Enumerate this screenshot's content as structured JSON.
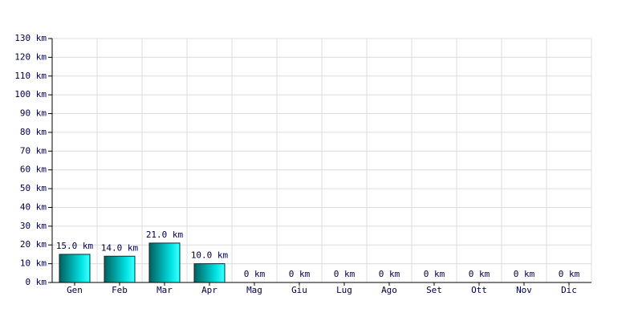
{
  "chart_data": {
    "type": "bar",
    "categories": [
      "Gen",
      "Feb",
      "Mar",
      "Apr",
      "Mag",
      "Giu",
      "Lug",
      "Ago",
      "Set",
      "Ott",
      "Nov",
      "Dic"
    ],
    "values": [
      15,
      14,
      21,
      10,
      0,
      0,
      0,
      0,
      0,
      0,
      0,
      0
    ],
    "value_labels": [
      "15.0 km",
      "14.0 km",
      "21.0 km",
      "10.0 km",
      "0 km",
      "0 km",
      "0 km",
      "0 km",
      "0 km",
      "0 km",
      "0 km",
      "0 km"
    ],
    "color": "#00e0e0",
    "ylim": [
      0,
      130
    ],
    "yticks": [
      {
        "value": 0,
        "label": "0 km"
      },
      {
        "value": 10,
        "label": "10 km"
      },
      {
        "value": 20,
        "label": "20 km"
      },
      {
        "value": 30,
        "label": "30 km"
      },
      {
        "value": 40,
        "label": "40 km"
      },
      {
        "value": 50,
        "label": "50 km"
      },
      {
        "value": 60,
        "label": "60 km"
      },
      {
        "value": 70,
        "label": "70 km"
      },
      {
        "value": 80,
        "label": "80 km"
      },
      {
        "value": 90,
        "label": "90 km"
      },
      {
        "value": 100,
        "label": "100 km"
      },
      {
        "value": 110,
        "label": "110 km"
      },
      {
        "value": 120,
        "label": "120 km"
      },
      {
        "value": 130,
        "label": "130 km"
      }
    ],
    "grid": true
  }
}
